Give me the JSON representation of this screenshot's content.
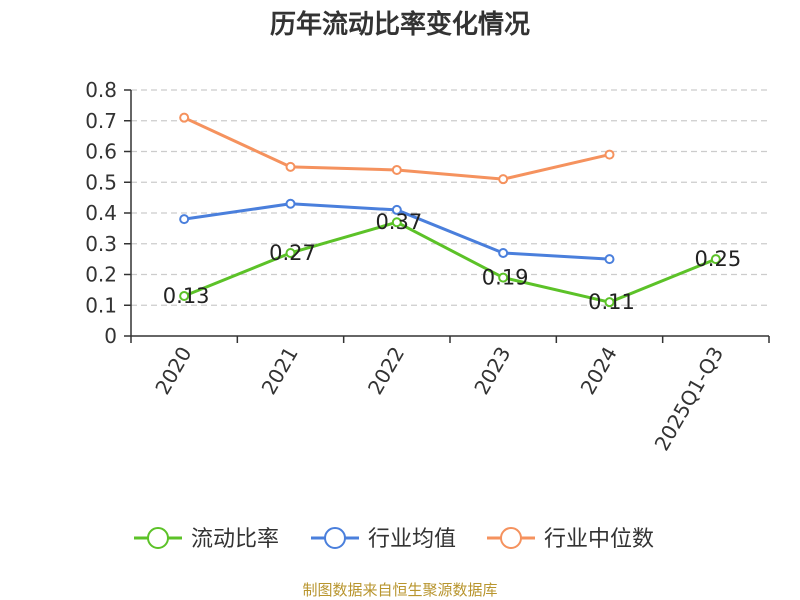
{
  "chart_data": {
    "type": "line",
    "title": "历年流动比率变化情况",
    "categories": [
      "2020",
      "2021",
      "2022",
      "2023",
      "2024",
      "2025Q1-Q3"
    ],
    "ylim": [
      0,
      0.8
    ],
    "yticks": [
      "0",
      "0.1",
      "0.2",
      "0.3",
      "0.4",
      "0.5",
      "0.6",
      "0.7",
      "0.8"
    ],
    "grid": "horizontal-dashed",
    "legend_position": "bottom",
    "series": [
      {
        "name": "流动比率",
        "color": "#5cc228",
        "values": [
          0.13,
          0.27,
          0.37,
          0.19,
          0.11,
          0.25
        ],
        "labels": [
          "0.13",
          "0.27",
          "0.37",
          "0.19",
          "0.11",
          "0.25"
        ]
      },
      {
        "name": "行业均值",
        "color": "#4a7fdc",
        "values": [
          0.38,
          0.43,
          0.41,
          0.27,
          0.25,
          null
        ]
      },
      {
        "name": "行业中位数",
        "color": "#f5925e",
        "values": [
          0.71,
          0.55,
          0.54,
          0.51,
          0.59,
          null
        ]
      }
    ],
    "source": "制图数据来自恒生聚源数据库"
  }
}
